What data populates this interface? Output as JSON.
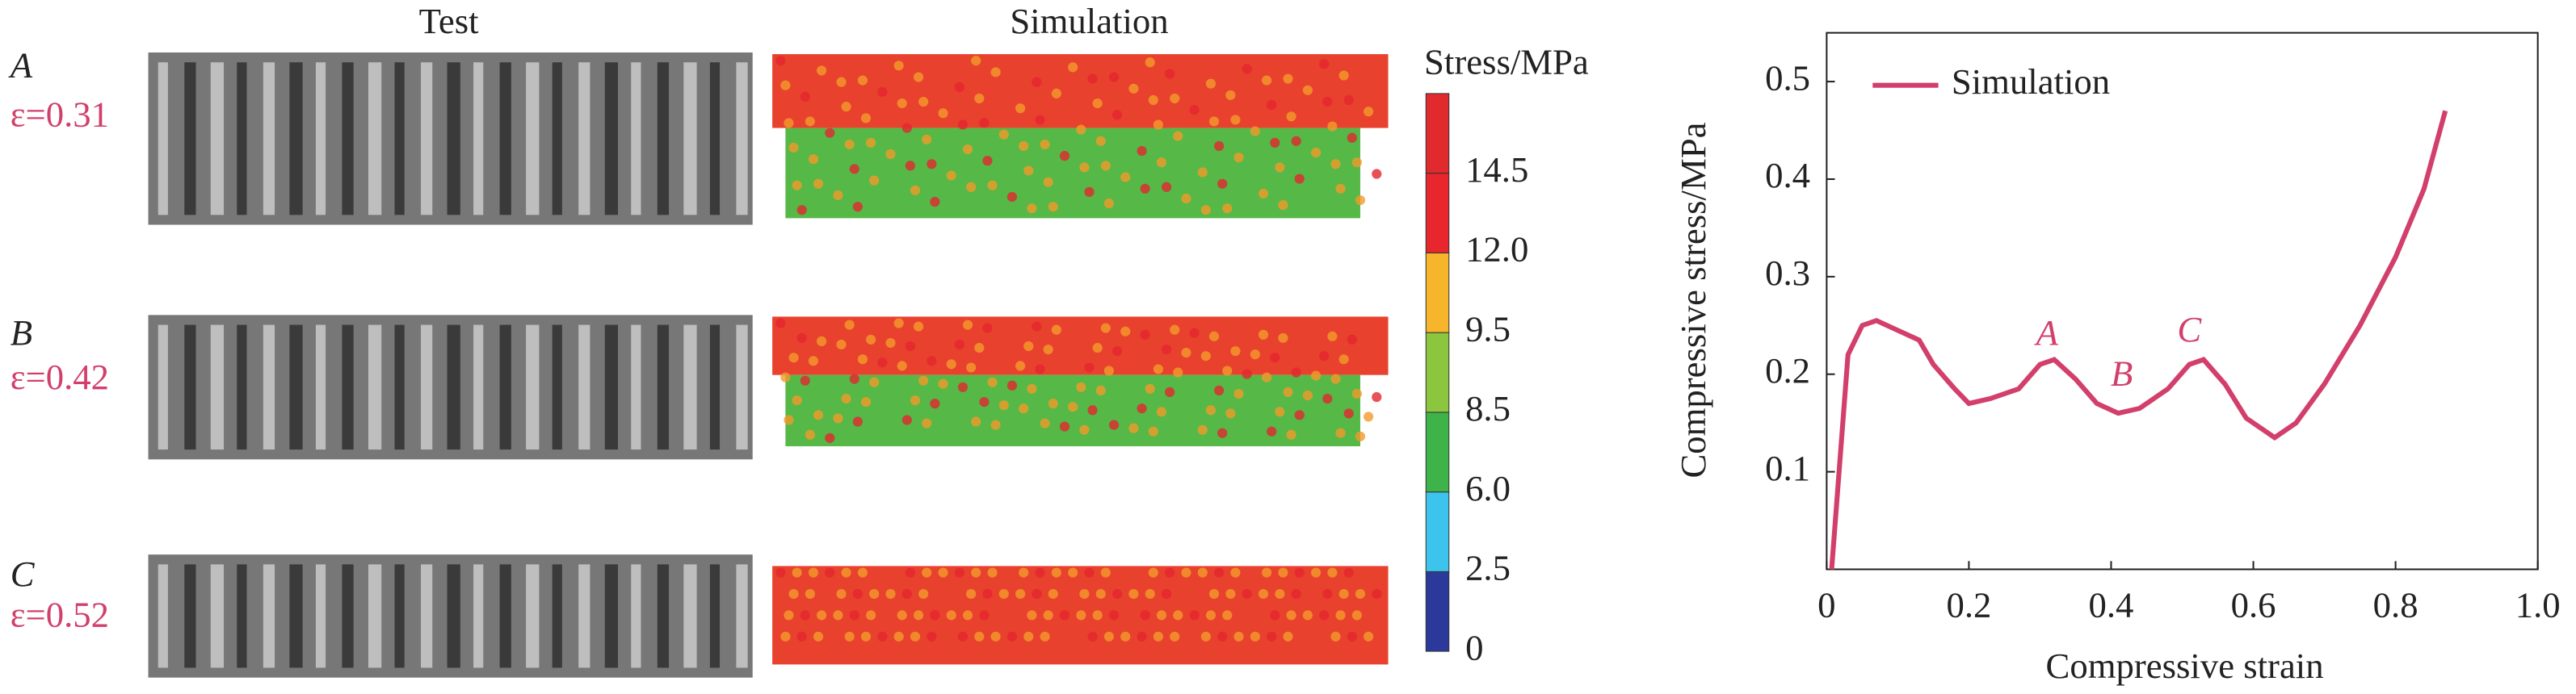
{
  "panels": {
    "headers": [
      "Test",
      "Simulation"
    ],
    "rows": [
      {
        "label": "A",
        "strain": "ε=0.31"
      },
      {
        "label": "B",
        "strain": "ε=0.42"
      },
      {
        "label": "C",
        "strain": "ε=0.52"
      }
    ],
    "colorbar": {
      "title": "Stress/MPa",
      "levels": [
        0,
        {
          "value": 2.5,
          "label": "2.5"
        },
        {
          "value": 6,
          "label": "6.0"
        },
        {
          "value": 8.5,
          "label": "8.5"
        },
        {
          "value": 9.5,
          "label": "9.5"
        },
        {
          "value": 12,
          "label": "12.0"
        },
        {
          "value": 14.5,
          "label": "14.5"
        }
      ],
      "colors": [
        "#2b3a9a",
        "#3cc4ec",
        "#3db34a",
        "#8cc63f",
        "#f7b52b",
        "#e8262d",
        "#e02a2e"
      ]
    }
  },
  "chart_data": {
    "type": "line",
    "x": [
      0.007,
      0.03,
      0.05,
      0.07,
      0.1,
      0.13,
      0.15,
      0.18,
      0.2,
      0.23,
      0.27,
      0.3,
      0.32,
      0.35,
      0.38,
      0.41,
      0.44,
      0.48,
      0.51,
      0.53,
      0.56,
      0.59,
      0.63,
      0.66,
      0.7,
      0.75,
      0.8,
      0.84,
      0.87
    ],
    "series": [
      {
        "name": "Simulation",
        "color": "#d23f6b",
        "values": [
          0,
          0.22,
          0.25,
          0.255,
          0.245,
          0.235,
          0.21,
          0.185,
          0.17,
          0.175,
          0.185,
          0.21,
          0.215,
          0.195,
          0.17,
          0.16,
          0.165,
          0.185,
          0.21,
          0.215,
          0.19,
          0.155,
          0.135,
          0.15,
          0.19,
          0.25,
          0.32,
          0.39,
          0.47
        ]
      }
    ],
    "x_label": "Compressive strain",
    "y_label": "Compressive stress/MPa",
    "xlim": [
      0,
      1
    ],
    "ylim": [
      0,
      0.55
    ],
    "xticks": [
      0,
      0.2,
      0.4,
      0.6,
      0.8,
      {
        "value": 1,
        "label": "1.0"
      }
    ],
    "yticks": [
      0.1,
      0.2,
      0.3,
      0.4,
      0.5
    ],
    "annotations": [
      {
        "text": "A",
        "x": 0.31,
        "y": 0.239
      },
      {
        "text": "B",
        "x": 0.415,
        "y": 0.197
      },
      {
        "text": "C",
        "x": 0.51,
        "y": 0.242
      }
    ],
    "legend": "upper left"
  }
}
